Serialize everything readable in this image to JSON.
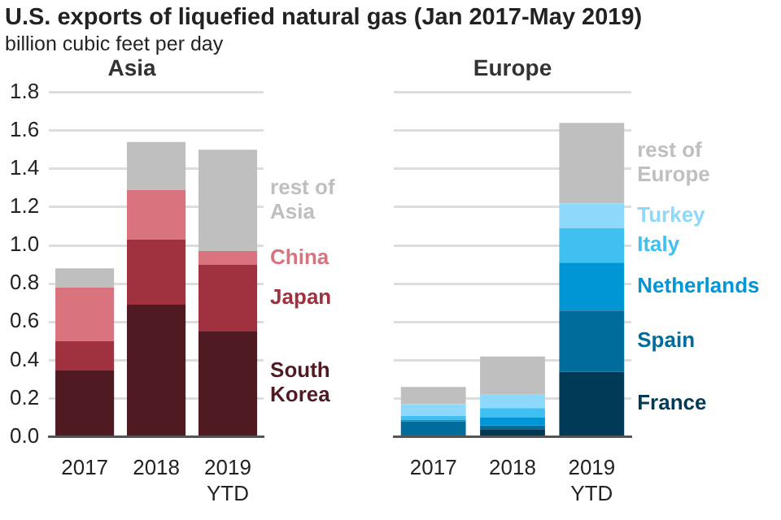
{
  "chart_data": [
    {
      "type": "bar",
      "title": "U.S. exports of liquefied natural gas (Jan 2017-May 2019)",
      "ylabel": "billion cubic feet per day",
      "subtitle": "Asia",
      "stacked": true,
      "categories": [
        "2017",
        "2018",
        "2019 YTD"
      ],
      "ylim": [
        0,
        1.8
      ],
      "yticks": [
        {
          "value": 0,
          "label": "0.0"
        },
        0.2,
        0.4,
        0.6,
        0.8,
        {
          "value": 1,
          "label": "1.0"
        },
        1.2,
        1.4,
        1.6,
        1.8
      ],
      "grid": "y",
      "legend": false,
      "series": [
        {
          "name": "South Korea",
          "color": "#4f1a22",
          "values": [
            0.35,
            0.69,
            0.55
          ]
        },
        {
          "name": "Japan",
          "color": "#a0313f",
          "values": [
            0.15,
            0.34,
            0.35
          ]
        },
        {
          "name": "China",
          "color": "#d9737e",
          "values": [
            0.28,
            0.26,
            0.07
          ]
        },
        {
          "name": "rest of Asia",
          "color": "#bfbfbf",
          "values": [
            0.1,
            0.25,
            0.53
          ]
        }
      ]
    },
    {
      "type": "bar",
      "subtitle": "Europe",
      "stacked": true,
      "categories": [
        "2017",
        "2018",
        "2019 YTD"
      ],
      "ylim": [
        0,
        1.8
      ],
      "yticks": [
        0,
        0.2,
        0.4,
        0.6,
        0.8,
        1,
        1.2,
        1.4,
        1.6,
        1.8
      ],
      "grid": "y",
      "legend": false,
      "tick_labels": "x",
      "series": [
        {
          "name": "France",
          "color": "#003a57",
          "values": [
            0.01,
            0.04,
            0.34
          ]
        },
        {
          "name": "Spain",
          "color": "#006c9c",
          "values": [
            0.07,
            0.02,
            0.32
          ]
        },
        {
          "name": "Netherlands",
          "color": "#0096d6",
          "values": [
            0.01,
            0.04,
            0.25
          ]
        },
        {
          "name": "Italy",
          "color": "#40c0f0",
          "values": [
            0.02,
            0.05,
            0.18
          ]
        },
        {
          "name": "Turkey",
          "color": "#8dd8fb",
          "values": [
            0.06,
            0.07,
            0.13
          ]
        },
        {
          "name": "rest of Europe",
          "color": "#bfbfbf",
          "values": [
            0.09,
            0.2,
            0.42
          ]
        }
      ]
    }
  ]
}
